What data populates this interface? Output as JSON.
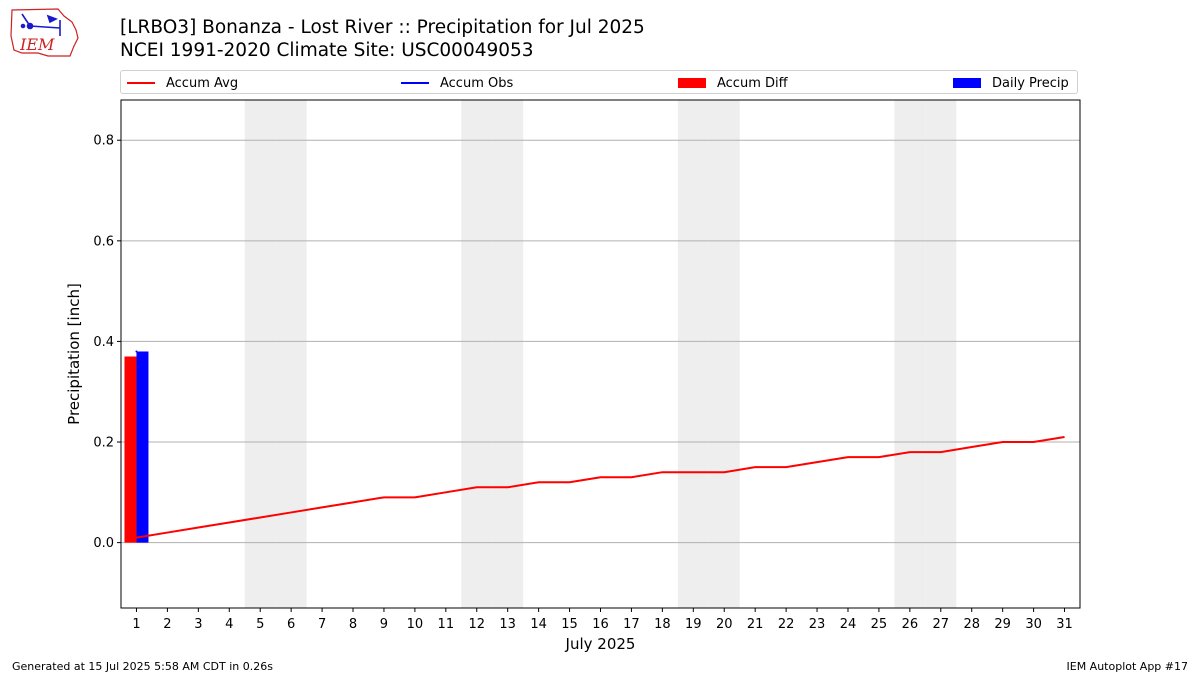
{
  "header": {
    "logo_text": "IEM",
    "title_line1": "[LRBO3] Bonanza - Lost River :: Precipitation for Jul 2025",
    "title_line2": "NCEI 1991-2020 Climate Site: USC00049053"
  },
  "legend": {
    "accum_avg": "Accum Avg",
    "accum_obs": "Accum Obs",
    "accum_diff": "Accum Diff",
    "daily_precip": "Daily Precip"
  },
  "footer": {
    "generated": "Generated at 15 Jul 2025 5:58 AM CDT in 0.26s",
    "app": "IEM Autoplot App #17"
  },
  "colors": {
    "accum_avg": "#ff0000",
    "accum_obs": "#0000ff",
    "accum_diff": "#ff0000",
    "daily_precip": "#0000ff",
    "weekend_band": "#eeeeee",
    "grid": "#b0b0b0"
  },
  "chart_data": {
    "type": "line",
    "xlabel": "July 2025",
    "ylabel": "Precipitation [inch]",
    "xlim": [
      0.5,
      31.5
    ],
    "ylim": [
      -0.13,
      0.88
    ],
    "yticks": [
      0.0,
      0.2,
      0.4,
      0.6,
      0.8
    ],
    "ytick_labels": [
      "0.0",
      "0.2",
      "0.4",
      "0.6",
      "0.8"
    ],
    "x": [
      1,
      2,
      3,
      4,
      5,
      6,
      7,
      8,
      9,
      10,
      11,
      12,
      13,
      14,
      15,
      16,
      17,
      18,
      19,
      20,
      21,
      22,
      23,
      24,
      25,
      26,
      27,
      28,
      29,
      30,
      31
    ],
    "xtick_labels": [
      "1",
      "2",
      "3",
      "4",
      "5",
      "6",
      "7",
      "8",
      "9",
      "10",
      "11",
      "12",
      "13",
      "14",
      "15",
      "16",
      "17",
      "18",
      "19",
      "20",
      "21",
      "22",
      "23",
      "24",
      "25",
      "26",
      "27",
      "28",
      "29",
      "30",
      "31"
    ],
    "grid": "horizontal",
    "legend_position": "top",
    "weekend_days": [
      5,
      6,
      12,
      13,
      19,
      20,
      26,
      27
    ],
    "series": [
      {
        "name": "Accum Avg",
        "kind": "line",
        "x": [
          1,
          2,
          3,
          4,
          5,
          6,
          7,
          8,
          9,
          10,
          11,
          12,
          13,
          14,
          15,
          16,
          17,
          18,
          19,
          20,
          21,
          22,
          23,
          24,
          25,
          26,
          27,
          28,
          29,
          30,
          31
        ],
        "values": [
          0.01,
          0.02,
          0.03,
          0.04,
          0.05,
          0.06,
          0.07,
          0.08,
          0.09,
          0.09,
          0.1,
          0.11,
          0.11,
          0.12,
          0.12,
          0.13,
          0.13,
          0.14,
          0.14,
          0.14,
          0.15,
          0.15,
          0.16,
          0.17,
          0.17,
          0.18,
          0.18,
          0.19,
          0.2,
          0.2,
          0.21
        ]
      },
      {
        "name": "Accum Obs",
        "kind": "line",
        "x": [
          1
        ],
        "values": [
          0.38
        ]
      },
      {
        "name": "Accum Diff",
        "kind": "bar",
        "x": [
          1
        ],
        "values": [
          0.37
        ]
      },
      {
        "name": "Daily Precip",
        "kind": "bar",
        "x": [
          1
        ],
        "values": [
          0.38
        ]
      }
    ]
  }
}
